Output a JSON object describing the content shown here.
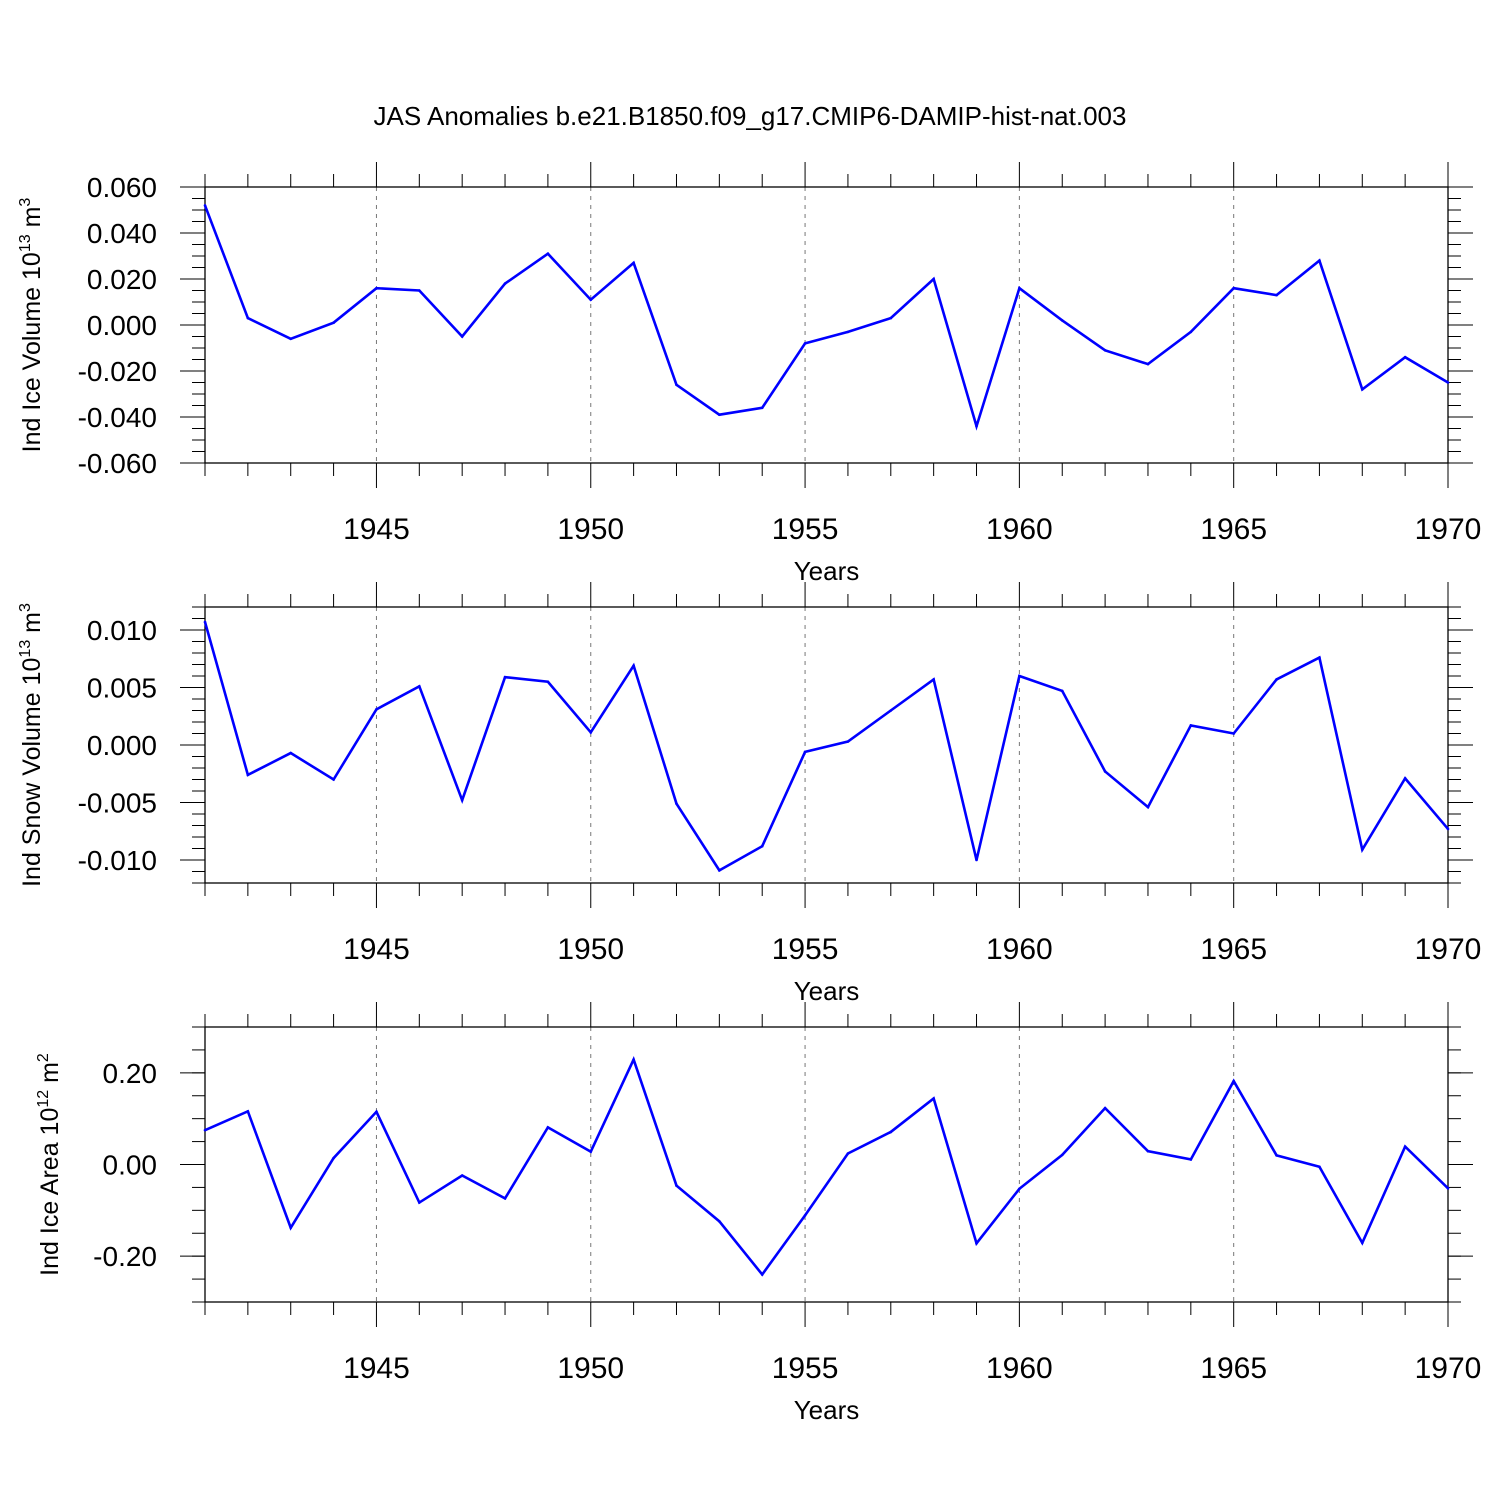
{
  "chart_data": {
    "title": "JAS Anomalies b.e21.B1850.f09_g17.CMIP6-DAMIP-hist-nat.003",
    "panels": [
      {
        "type": "line",
        "ylabel": "Ind Ice Volume 10",
        "ylabel_exp": "13",
        "ylabel_unit": " m",
        "ylabel_unit_exp": "3",
        "xlabel": "Years",
        "xlim": [
          1941,
          1970
        ],
        "ylim": [
          -0.06,
          0.06
        ],
        "yticks": [
          -0.06,
          -0.04,
          -0.02,
          0.0,
          0.02,
          0.04,
          0.06
        ],
        "ytick_labels": [
          "-0.060",
          "-0.040",
          "-0.020",
          "0.000",
          "0.020",
          "0.040",
          "0.060"
        ],
        "yminor_step": 0.005,
        "xticks": [
          1945,
          1950,
          1955,
          1960,
          1965,
          1970
        ],
        "xtick_labels": [
          "1945",
          "1950",
          "1955",
          "1960",
          "1965",
          "1970"
        ],
        "grid": "vertical-dashed",
        "color": "#0000ff",
        "x": [
          1941,
          1942,
          1943,
          1944,
          1945,
          1946,
          1947,
          1948,
          1949,
          1950,
          1951,
          1952,
          1953,
          1954,
          1955,
          1956,
          1957,
          1958,
          1959,
          1960,
          1961,
          1962,
          1963,
          1964,
          1965,
          1966,
          1967,
          1968,
          1969,
          1970
        ],
        "y": [
          0.052,
          0.003,
          -0.006,
          0.001,
          0.016,
          0.015,
          -0.005,
          0.018,
          0.031,
          0.011,
          0.027,
          -0.026,
          -0.039,
          -0.036,
          -0.008,
          -0.003,
          0.003,
          0.02,
          -0.044,
          0.016,
          0.002,
          -0.011,
          -0.017,
          -0.003,
          0.016,
          0.013,
          0.028,
          -0.028,
          -0.014,
          -0.025
        ]
      },
      {
        "type": "line",
        "ylabel": "Ind Snow Volume 10",
        "ylabel_exp": "13",
        "ylabel_unit": " m",
        "ylabel_unit_exp": "3",
        "xlabel": "Years",
        "xlim": [
          1941,
          1970
        ],
        "ylim": [
          -0.012,
          0.012
        ],
        "yticks": [
          -0.01,
          -0.005,
          0.0,
          0.005,
          0.01
        ],
        "ytick_labels": [
          "-0.010",
          "-0.005",
          "0.000",
          "0.005",
          "0.010"
        ],
        "yminor_step": 0.001,
        "xticks": [
          1945,
          1950,
          1955,
          1960,
          1965,
          1970
        ],
        "xtick_labels": [
          "1945",
          "1950",
          "1955",
          "1960",
          "1965",
          "1970"
        ],
        "grid": "vertical-dashed",
        "color": "#0000ff",
        "x": [
          1941,
          1942,
          1943,
          1944,
          1945,
          1946,
          1947,
          1948,
          1949,
          1950,
          1951,
          1952,
          1953,
          1954,
          1955,
          1956,
          1957,
          1958,
          1959,
          1960,
          1961,
          1962,
          1963,
          1964,
          1965,
          1966,
          1967,
          1968,
          1969,
          1970
        ],
        "y": [
          0.0107,
          -0.0026,
          -0.0007,
          -0.003,
          0.0031,
          0.0051,
          -0.0048,
          0.0059,
          0.0055,
          0.0011,
          0.0069,
          -0.0051,
          -0.0109,
          -0.0088,
          -0.0006,
          0.0003,
          0.003,
          0.0057,
          -0.01,
          0.006,
          0.0047,
          -0.0023,
          -0.0054,
          0.0017,
          0.001,
          0.0057,
          0.0076,
          -0.0091,
          -0.0029,
          -0.0073
        ]
      },
      {
        "type": "line",
        "ylabel": "Ind Ice Area 10",
        "ylabel_exp": "12",
        "ylabel_unit": " m",
        "ylabel_unit_exp": "2",
        "xlabel": "Years",
        "xlim": [
          1941,
          1970
        ],
        "ylim": [
          -0.3,
          0.3
        ],
        "yticks": [
          -0.2,
          0.0,
          0.2
        ],
        "ytick_labels": [
          "-0.20",
          "0.00",
          "0.20"
        ],
        "yminor_step": 0.05,
        "xticks": [
          1945,
          1950,
          1955,
          1960,
          1965,
          1970
        ],
        "xtick_labels": [
          "1945",
          "1950",
          "1955",
          "1960",
          "1965",
          "1970"
        ],
        "grid": "vertical-dashed",
        "color": "#0000ff",
        "x": [
          1941,
          1942,
          1943,
          1944,
          1945,
          1946,
          1947,
          1948,
          1949,
          1950,
          1951,
          1952,
          1953,
          1954,
          1955,
          1956,
          1957,
          1958,
          1959,
          1960,
          1961,
          1962,
          1963,
          1964,
          1965,
          1966,
          1967,
          1968,
          1969,
          1970
        ],
        "y": [
          0.075,
          0.116,
          -0.138,
          0.014,
          0.115,
          -0.083,
          -0.024,
          -0.074,
          0.081,
          0.028,
          0.229,
          -0.046,
          -0.124,
          -0.24,
          -0.111,
          0.024,
          0.071,
          0.144,
          -0.172,
          -0.053,
          0.021,
          0.123,
          0.029,
          0.011,
          0.182,
          0.02,
          -0.005,
          -0.171,
          0.039,
          -0.052
        ]
      }
    ]
  }
}
